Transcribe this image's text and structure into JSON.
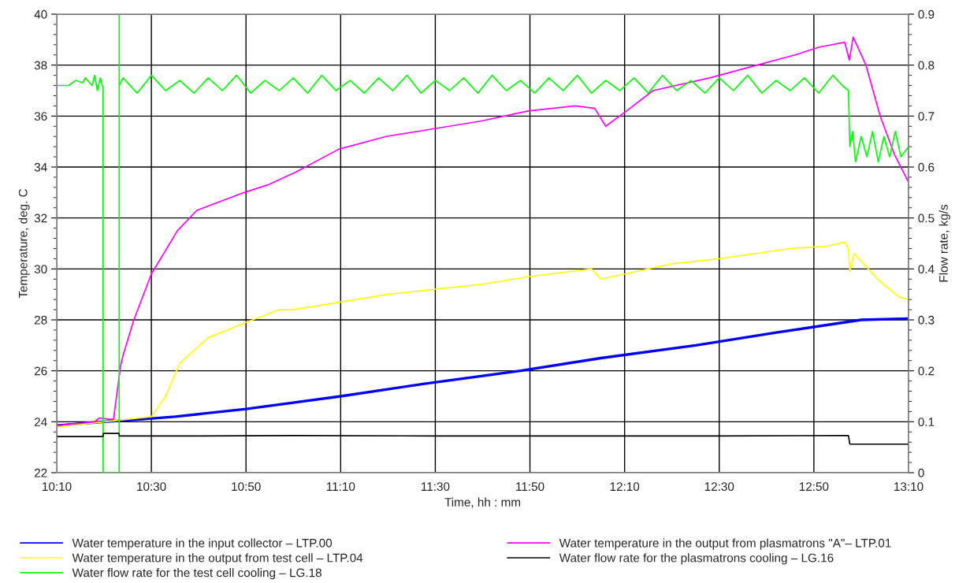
{
  "chart_data": {
    "type": "line",
    "xlabel": "Time, hh : mm",
    "ylabel": "Temperature, deg. C",
    "y2label": "Flow rate, kg/s",
    "xlim": [
      10.1667,
      13.1667
    ],
    "xticks": [
      {
        "value": 10.1667,
        "label": "10:10"
      },
      {
        "value": 10.5,
        "label": "10:30"
      },
      {
        "value": 10.8333,
        "label": "10:50"
      },
      {
        "value": 11.1667,
        "label": "11:10"
      },
      {
        "value": 11.5,
        "label": "11:30"
      },
      {
        "value": 11.8333,
        "label": "11:50"
      },
      {
        "value": 12.1667,
        "label": "12:10"
      },
      {
        "value": 12.5,
        "label": "12:30"
      },
      {
        "value": 12.8333,
        "label": "12:50"
      },
      {
        "value": 13.1667,
        "label": "13:10"
      }
    ],
    "ylim": [
      22,
      40
    ],
    "yticks": [
      22,
      24,
      26,
      28,
      30,
      32,
      34,
      36,
      38,
      40
    ],
    "y2lim": [
      0,
      0.9
    ],
    "y2ticks": [
      0,
      0.1,
      0.2,
      0.3,
      0.4,
      0.5,
      0.6,
      0.7,
      0.8,
      0.9
    ],
    "grid": true,
    "legend": "bottom",
    "marker": "none",
    "line_style": "solid",
    "series": [
      {
        "name": "Water temperature in the input collector – LTP.00",
        "color": "#0000ff",
        "x": [
          10.1667,
          10.3333,
          10.4667,
          10.5833,
          10.8333,
          11.1667,
          11.4667,
          11.8,
          12.0833,
          12.4167,
          12.7,
          13.0,
          13.1667
        ],
        "values": [
          23.85,
          24.0,
          24.1,
          24.2,
          24.5,
          25.0,
          25.5,
          26.0,
          26.5,
          27.0,
          27.5,
          28.0,
          28.05
        ]
      },
      {
        "name": "Water temperature in the output from test cell – LTP.04",
        "color": "#ffff00",
        "x": [
          10.1667,
          10.3333,
          10.4167,
          10.5,
          10.55,
          10.6,
          10.7,
          10.8333,
          10.95,
          11.0,
          11.1667,
          11.3333,
          11.5,
          11.6667,
          11.8333,
          12.05,
          12.0833,
          12.1667,
          12.3333,
          12.5,
          12.75,
          12.8833,
          12.9417,
          12.955,
          12.96,
          12.975,
          13.0,
          13.0667,
          13.1333,
          13.1667
        ],
        "values": [
          23.8,
          24.0,
          24.1,
          24.2,
          25.0,
          26.3,
          27.3,
          27.9,
          28.4,
          28.4,
          28.7,
          29.0,
          29.2,
          29.4,
          29.7,
          30.0,
          29.6,
          29.8,
          30.2,
          30.4,
          30.8,
          30.9,
          31.05,
          30.8,
          29.9,
          30.6,
          30.3,
          29.5,
          28.9,
          28.8
        ]
      },
      {
        "name": "Water flow rate for the test cell cooling – LG.18",
        "color": "#00ff00",
        "axis": "y2",
        "x": [
          10.1667,
          10.2083,
          10.2333,
          10.2583,
          10.2667,
          10.2917,
          10.3,
          10.31,
          10.32,
          10.33,
          10.3301,
          10.3867,
          10.3868,
          10.3869,
          10.4,
          10.45,
          10.5,
          10.55,
          10.6,
          10.65,
          10.7,
          10.75,
          10.8,
          10.85,
          10.9,
          10.95,
          11.0,
          11.05,
          11.1,
          11.15,
          11.2,
          11.25,
          11.3,
          11.35,
          11.4,
          11.45,
          11.5,
          11.55,
          11.6,
          11.65,
          11.7,
          11.75,
          11.8,
          11.85,
          11.9,
          11.95,
          12.0,
          12.05,
          12.1,
          12.15,
          12.2,
          12.25,
          12.3,
          12.35,
          12.4,
          12.45,
          12.5,
          12.55,
          12.6,
          12.65,
          12.7,
          12.75,
          12.8,
          12.85,
          12.9,
          12.9333,
          12.955,
          12.96,
          12.97,
          12.98,
          13.0,
          13.02,
          13.04,
          13.06,
          13.08,
          13.1,
          13.12,
          13.14,
          13.1667
        ],
        "values": [
          0.76,
          0.76,
          0.77,
          0.765,
          0.775,
          0.76,
          0.78,
          0.75,
          0.775,
          0.755,
          0,
          0,
          0.9,
          0.76,
          0.775,
          0.745,
          0.78,
          0.75,
          0.77,
          0.745,
          0.775,
          0.75,
          0.78,
          0.745,
          0.77,
          0.75,
          0.775,
          0.745,
          0.78,
          0.75,
          0.77,
          0.745,
          0.775,
          0.75,
          0.78,
          0.745,
          0.77,
          0.75,
          0.775,
          0.745,
          0.78,
          0.75,
          0.77,
          0.745,
          0.775,
          0.75,
          0.78,
          0.745,
          0.77,
          0.75,
          0.775,
          0.745,
          0.78,
          0.75,
          0.77,
          0.745,
          0.775,
          0.75,
          0.78,
          0.745,
          0.77,
          0.75,
          0.775,
          0.745,
          0.78,
          0.76,
          0.75,
          0.64,
          0.67,
          0.61,
          0.66,
          0.62,
          0.67,
          0.61,
          0.66,
          0.62,
          0.67,
          0.62,
          0.64
        ]
      },
      {
        "name": "Water temperature in the output from plasmatrons \"A\"– LTP.01",
        "color": "#ff00ff",
        "x": [
          10.1667,
          10.3,
          10.3167,
          10.35,
          10.3667,
          10.3917,
          10.4,
          10.4383,
          10.5,
          10.5917,
          10.66,
          10.8267,
          10.91,
          11.0083,
          11.16,
          11.3267,
          11.4933,
          11.66,
          11.8267,
          11.9933,
          12.0617,
          12.1,
          12.1733,
          12.2667,
          12.4667,
          12.6333,
          12.7667,
          12.85,
          12.9417,
          12.9583,
          12.9717,
          13.0167,
          13.0667,
          13.1167,
          13.1667
        ],
        "values": [
          23.85,
          24.0,
          24.15,
          24.1,
          24.1,
          26.2,
          26.6,
          28.0,
          29.8,
          31.5,
          32.3,
          33.0,
          33.3,
          33.8,
          34.7,
          35.2,
          35.5,
          35.8,
          36.2,
          36.4,
          36.3,
          35.6,
          36.2,
          37.0,
          37.5,
          38.0,
          38.4,
          38.7,
          38.9,
          38.2,
          39.1,
          38.0,
          36.0,
          34.5,
          33.4
        ]
      },
      {
        "name": "Water flow rate for the plasmatrons cooling – LG.16",
        "color": "#000000",
        "axis": "y2",
        "x": [
          10.1667,
          10.33,
          10.331,
          10.386,
          10.387,
          10.6,
          11.0,
          11.5,
          12.0,
          12.5,
          12.955,
          12.96,
          13.1667
        ],
        "values": [
          0.071,
          0.071,
          0.077,
          0.077,
          0.072,
          0.072,
          0.073,
          0.072,
          0.072,
          0.072,
          0.073,
          0.056,
          0.056
        ]
      }
    ]
  }
}
